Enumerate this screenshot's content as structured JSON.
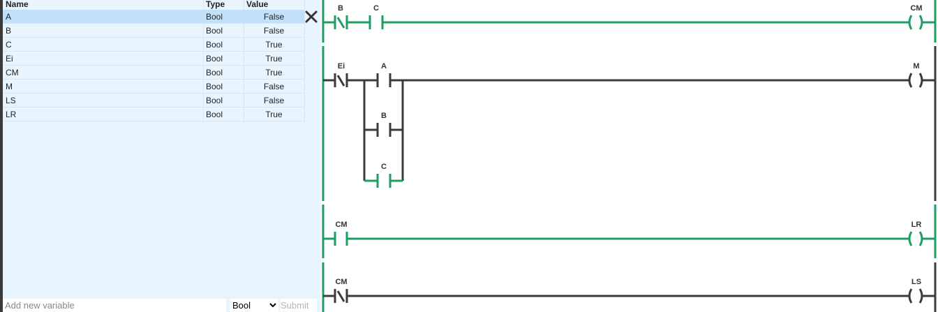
{
  "variables": {
    "headers": {
      "name": "Name",
      "type": "Type",
      "value": "Value"
    },
    "rows": [
      {
        "name": "A",
        "type": "Bool",
        "value": "False"
      },
      {
        "name": "B",
        "type": "Bool",
        "value": "False"
      },
      {
        "name": "C",
        "type": "Bool",
        "value": "True"
      },
      {
        "name": "Ei",
        "type": "Bool",
        "value": "True"
      },
      {
        "name": "CM",
        "type": "Bool",
        "value": "True"
      },
      {
        "name": "M",
        "type": "Bool",
        "value": "False"
      },
      {
        "name": "LS",
        "type": "Bool",
        "value": "False"
      },
      {
        "name": "LR",
        "type": "Bool",
        "value": "True"
      }
    ],
    "selected_row": "A",
    "delete_icon": "close-icon"
  },
  "add_form": {
    "placeholder": "Add new variable",
    "type_options": [
      "Bool"
    ],
    "type_selected": "Bool",
    "submit_label": "Submit"
  },
  "ladder": {
    "colors": {
      "active": "#1e9e62",
      "inactive": "#3b3b3b"
    },
    "rungs": [
      {
        "contacts": [
          {
            "label": "B",
            "kind": "NC",
            "energized": true
          },
          {
            "label": "C",
            "kind": "NO",
            "energized": true
          }
        ],
        "coil": {
          "label": "CM",
          "energized": true
        }
      },
      {
        "contacts": [
          {
            "label": "Ei",
            "kind": "NC",
            "energized": false
          },
          {
            "label": "A",
            "kind": "NO",
            "energized": false
          },
          {
            "label": "B",
            "kind": "NO",
            "energized": false,
            "branch": 1
          },
          {
            "label": "C",
            "kind": "NO",
            "energized": true,
            "branch": 2
          }
        ],
        "coil": {
          "label": "M",
          "energized": false
        }
      },
      {
        "contacts": [
          {
            "label": "CM",
            "kind": "NO",
            "energized": true
          }
        ],
        "coil": {
          "label": "LR",
          "energized": true
        }
      },
      {
        "contacts": [
          {
            "label": "CM",
            "kind": "NC",
            "energized": false
          }
        ],
        "coil": {
          "label": "LS",
          "energized": false
        }
      }
    ]
  }
}
